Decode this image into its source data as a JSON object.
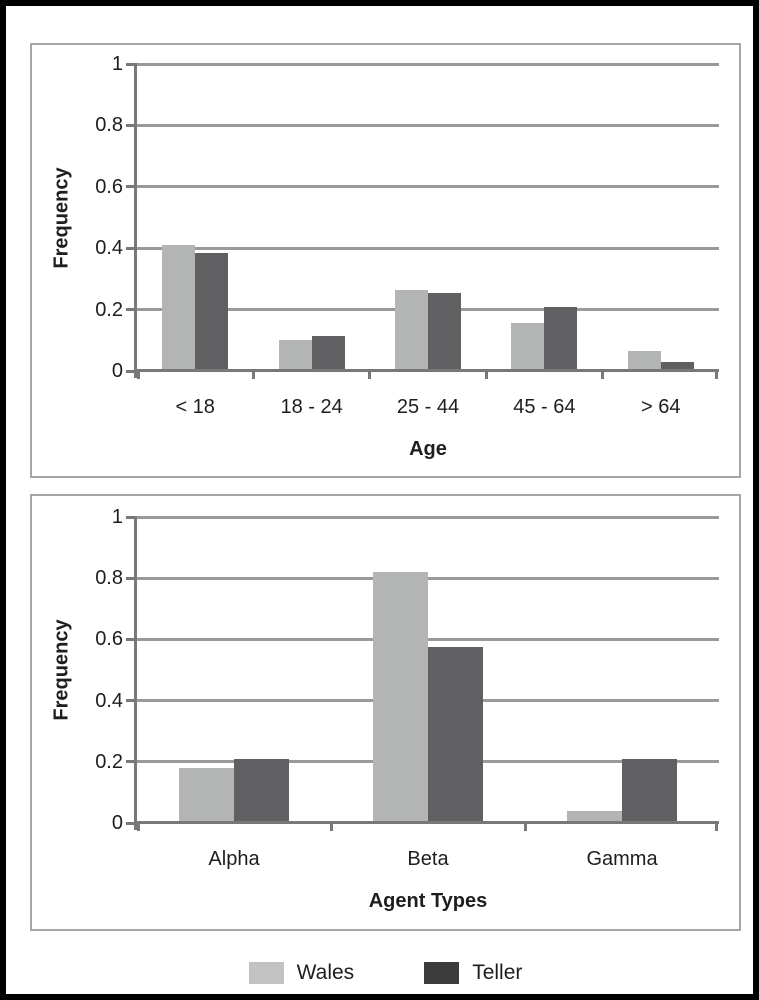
{
  "colors": {
    "wales_bar": "#b3b5b4",
    "teller_bar": "#606062",
    "gridline": "#9a9a9a",
    "axis": "#787878",
    "panel_border": "#a6a6a6",
    "outer_border": "#000000",
    "text": "#1e1e1e"
  },
  "legend": {
    "items": [
      {
        "label": "Wales",
        "swatch_color": "#c2c2c2"
      },
      {
        "label": "Teller",
        "swatch_color": "#3b3b3b"
      }
    ]
  },
  "chart_data": [
    {
      "type": "bar",
      "title": "",
      "categories": [
        "< 18",
        "18 - 24",
        "25 - 44",
        "45 - 64",
        "> 64"
      ],
      "series": [
        {
          "name": "Wales",
          "color": "#b3b5b4",
          "values": [
            0.41,
            0.1,
            0.265,
            0.155,
            0.065
          ]
        },
        {
          "name": "Teller",
          "color": "#606062",
          "values": [
            0.385,
            0.115,
            0.255,
            0.21,
            0.03
          ]
        }
      ],
      "xlabel": "Age",
      "ylabel": "Frequency",
      "ylim": [
        0,
        1
      ],
      "yticks": [
        0,
        0.2,
        0.4,
        0.6,
        0.8,
        1
      ],
      "grid": true,
      "legend_position": "bottom-shared"
    },
    {
      "type": "bar",
      "title": "",
      "categories": [
        "Alpha",
        "Beta",
        "Gamma"
      ],
      "series": [
        {
          "name": "Wales",
          "color": "#b3b5b4",
          "values": [
            0.18,
            0.82,
            0.04
          ]
        },
        {
          "name": "Teller",
          "color": "#606062",
          "values": [
            0.21,
            0.575,
            0.21
          ]
        }
      ],
      "xlabel": "Agent Types",
      "ylabel": "Frequency",
      "ylim": [
        0,
        1
      ],
      "yticks": [
        0,
        0.2,
        0.4,
        0.6,
        0.8,
        1
      ],
      "grid": true,
      "legend_position": "bottom-shared"
    }
  ]
}
